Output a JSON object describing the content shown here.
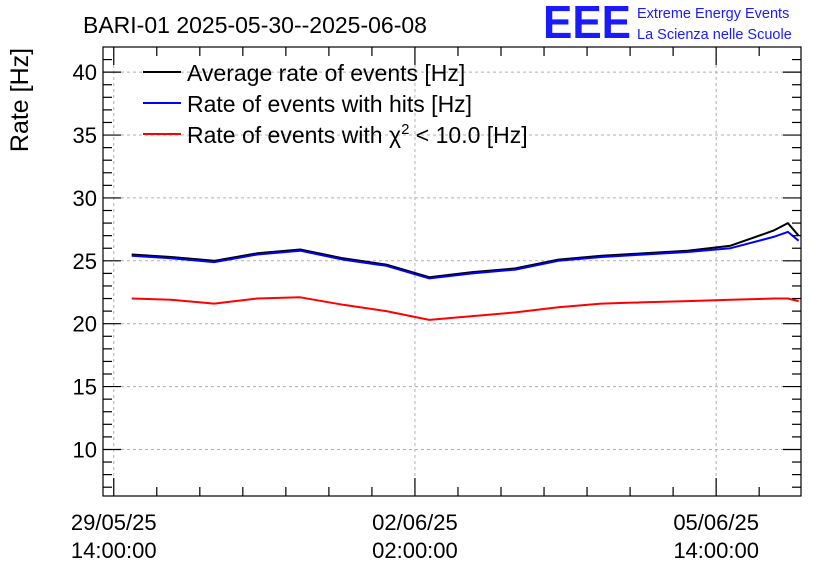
{
  "header": {
    "title": "BARI-01 2025-05-30--2025-06-08",
    "logo_text": "EEE",
    "logo_line1": "Extreme Energy Events",
    "logo_line2": "La Scienza nelle Scuole",
    "logo_color": "#1a1aff"
  },
  "chart_data": {
    "type": "line",
    "title": "BARI-01 2025-05-30--2025-06-08",
    "ylabel": "Rate [Hz]",
    "xlabel": "",
    "ylim": [
      6.3,
      42
    ],
    "xlim": [
      "2025-05-29 11:00:00",
      "2025-06-06 13:40:00"
    ],
    "yticks": [
      10,
      15,
      20,
      25,
      30,
      35,
      40
    ],
    "xticks": [
      {
        "date": "2025-05-29 14:00:00",
        "line1": "29/05/25",
        "line2": "14:00:00"
      },
      {
        "date": "2025-06-02 02:00:00",
        "line1": "02/06/25",
        "line2": "02:00:00"
      },
      {
        "date": "2025-06-05 14:00:00",
        "line1": "05/06/25",
        "line2": "14:00:00"
      }
    ],
    "grid": true,
    "legend_position": "top-left",
    "legend": [
      {
        "label_main": "Average rate of events [Hz]",
        "label_sup": "",
        "label_tail": "",
        "color": "#000000"
      },
      {
        "label_main": "Rate of events with hits [Hz]",
        "label_sup": "",
        "label_tail": "",
        "color": "#0000ff"
      },
      {
        "label_main": "Rate of events with χ",
        "label_sup": "2",
        "label_tail": " < 10.0 [Hz]",
        "color": "#ff0000"
      }
    ],
    "series": [
      {
        "name": "Average rate of events [Hz]",
        "color": "#000000",
        "x": [
          "2025-05-29 19:00",
          "2025-05-30 06:00",
          "2025-05-30 18:00",
          "2025-05-31 06:00",
          "2025-05-31 18:00",
          "2025-06-01 06:00",
          "2025-06-01 18:00",
          "2025-06-02 06:00",
          "2025-06-02 18:00",
          "2025-06-03 06:00",
          "2025-06-03 18:00",
          "2025-06-04 06:00",
          "2025-06-04 18:00",
          "2025-06-05 06:00",
          "2025-06-05 18:00",
          "2025-06-06 06:00",
          "2025-06-06 10:00",
          "2025-06-06 13:00"
        ],
        "y": [
          25.5,
          25.3,
          25.0,
          25.6,
          25.9,
          25.2,
          24.7,
          23.7,
          24.1,
          24.4,
          25.1,
          25.4,
          25.6,
          25.8,
          26.2,
          27.4,
          28.0,
          27.0
        ]
      },
      {
        "name": "Rate of events with hits [Hz]",
        "color": "#0000ff",
        "x": [
          "2025-05-29 19:00",
          "2025-05-30 06:00",
          "2025-05-30 18:00",
          "2025-05-31 06:00",
          "2025-05-31 18:00",
          "2025-06-01 06:00",
          "2025-06-01 18:00",
          "2025-06-02 06:00",
          "2025-06-02 18:00",
          "2025-06-03 06:00",
          "2025-06-03 18:00",
          "2025-06-04 06:00",
          "2025-06-04 18:00",
          "2025-06-05 06:00",
          "2025-06-05 18:00",
          "2025-06-06 06:00",
          "2025-06-06 10:00",
          "2025-06-06 13:00"
        ],
        "y": [
          25.4,
          25.2,
          24.9,
          25.5,
          25.8,
          25.1,
          24.6,
          23.6,
          24.0,
          24.3,
          25.0,
          25.3,
          25.5,
          25.7,
          26.0,
          26.9,
          27.3,
          26.6
        ]
      },
      {
        "name": "Rate of events with χ2 < 10.0 [Hz]",
        "color": "#ff0000",
        "x": [
          "2025-05-29 19:00",
          "2025-05-30 06:00",
          "2025-05-30 18:00",
          "2025-05-31 06:00",
          "2025-05-31 18:00",
          "2025-06-01 06:00",
          "2025-06-01 18:00",
          "2025-06-02 06:00",
          "2025-06-02 18:00",
          "2025-06-03 06:00",
          "2025-06-03 18:00",
          "2025-06-04 06:00",
          "2025-06-04 18:00",
          "2025-06-05 06:00",
          "2025-06-05 18:00",
          "2025-06-06 06:00",
          "2025-06-06 10:00",
          "2025-06-06 13:00"
        ],
        "y": [
          22.0,
          21.9,
          21.6,
          22.0,
          22.1,
          21.5,
          21.0,
          20.3,
          20.6,
          20.9,
          21.3,
          21.6,
          21.7,
          21.8,
          21.9,
          22.0,
          22.0,
          21.8
        ]
      }
    ]
  }
}
